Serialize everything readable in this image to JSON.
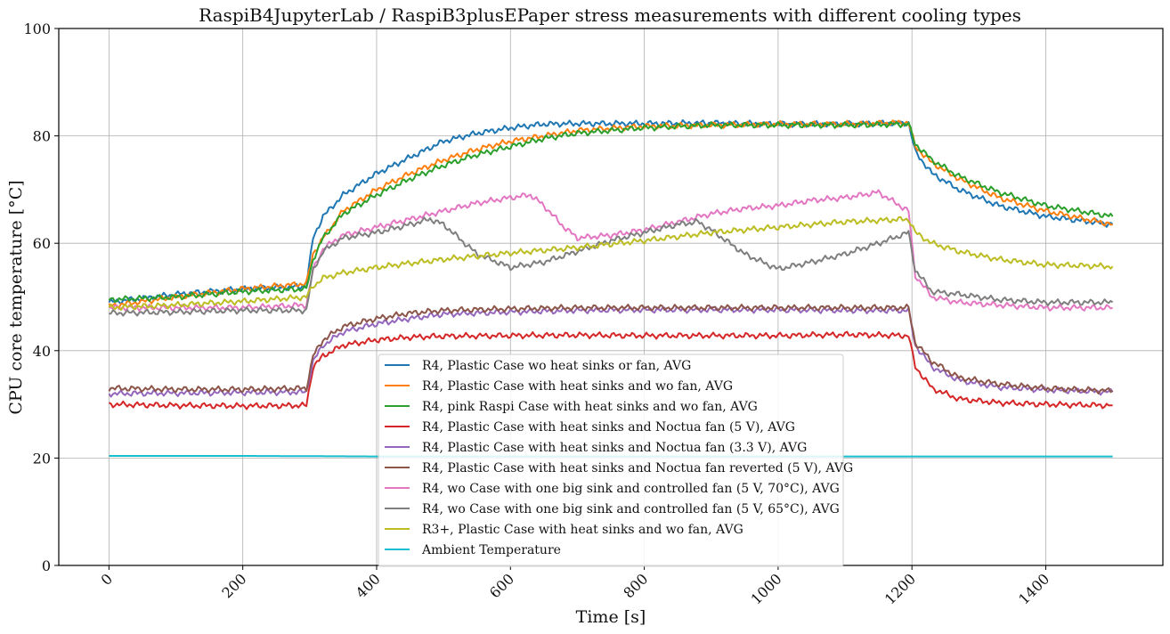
{
  "chart_data": {
    "type": "line",
    "title": "RaspiB4JupyterLab / RaspiB3plusEPaper stress measurements with different cooling types",
    "xlabel": "Time [s]",
    "ylabel": "CPU core temperature [°C]",
    "xlim": [
      -75,
      1575
    ],
    "ylim": [
      0,
      100
    ],
    "xticks": [
      0,
      200,
      400,
      600,
      800,
      1000,
      1200,
      1400
    ],
    "yticks": [
      0,
      20,
      40,
      60,
      80,
      100
    ],
    "grid": true,
    "legend_position": "lower-center",
    "series": [
      {
        "name": "R4, Plastic Case wo heat sinks or fan, AVG",
        "color": "#1f77b4",
        "points": [
          [
            0,
            49
          ],
          [
            100,
            50.5
          ],
          [
            200,
            51.5
          ],
          [
            295,
            52
          ],
          [
            305,
            61
          ],
          [
            320,
            65
          ],
          [
            350,
            69
          ],
          [
            400,
            73
          ],
          [
            450,
            76
          ],
          [
            500,
            79
          ],
          [
            550,
            80.5
          ],
          [
            600,
            81.5
          ],
          [
            650,
            82.2
          ],
          [
            700,
            82.3
          ],
          [
            800,
            82.3
          ],
          [
            900,
            82.4
          ],
          [
            1000,
            82.2
          ],
          [
            1100,
            82.2
          ],
          [
            1195,
            82.4
          ],
          [
            1205,
            77
          ],
          [
            1230,
            73
          ],
          [
            1270,
            70
          ],
          [
            1330,
            67
          ],
          [
            1400,
            65
          ],
          [
            1500,
            63.5
          ]
        ]
      },
      {
        "name": "R4, Plastic Case with heat sinks and wo fan, AVG",
        "color": "#ff7f0e",
        "points": [
          [
            0,
            48.3
          ],
          [
            100,
            50
          ],
          [
            200,
            51.5
          ],
          [
            295,
            52.5
          ],
          [
            305,
            58
          ],
          [
            320,
            61
          ],
          [
            350,
            66
          ],
          [
            400,
            70
          ],
          [
            450,
            73
          ],
          [
            500,
            75.5
          ],
          [
            550,
            77.5
          ],
          [
            600,
            79
          ],
          [
            650,
            80
          ],
          [
            700,
            81
          ],
          [
            800,
            81.8
          ],
          [
            900,
            82
          ],
          [
            1000,
            82.2
          ],
          [
            1100,
            82.2
          ],
          [
            1195,
            82.5
          ],
          [
            1205,
            78
          ],
          [
            1230,
            75
          ],
          [
            1270,
            72
          ],
          [
            1330,
            68.5
          ],
          [
            1400,
            66
          ],
          [
            1500,
            63.5
          ]
        ]
      },
      {
        "name": "R4, pink Raspi Case with heat sinks and wo fan, AVG",
        "color": "#2ca02c",
        "points": [
          [
            0,
            49.5
          ],
          [
            100,
            50
          ],
          [
            200,
            51
          ],
          [
            295,
            51.5
          ],
          [
            305,
            57
          ],
          [
            320,
            61
          ],
          [
            350,
            65.5
          ],
          [
            400,
            69
          ],
          [
            450,
            72
          ],
          [
            500,
            74.5
          ],
          [
            550,
            76.5
          ],
          [
            600,
            78
          ],
          [
            650,
            79.5
          ],
          [
            700,
            80.5
          ],
          [
            800,
            81.5
          ],
          [
            900,
            82
          ],
          [
            1000,
            82
          ],
          [
            1100,
            82
          ],
          [
            1195,
            82.2
          ],
          [
            1205,
            78.5
          ],
          [
            1230,
            75.5
          ],
          [
            1270,
            72.5
          ],
          [
            1330,
            69.5
          ],
          [
            1400,
            67
          ],
          [
            1500,
            65
          ]
        ]
      },
      {
        "name": "R4, Plastic Case with heat sinks and Noctua fan (5 V), AVG",
        "color": "#d62728",
        "points": [
          [
            0,
            30
          ],
          [
            100,
            29.8
          ],
          [
            200,
            29.7
          ],
          [
            295,
            29.8
          ],
          [
            305,
            37
          ],
          [
            320,
            39
          ],
          [
            350,
            41
          ],
          [
            400,
            42
          ],
          [
            450,
            42.5
          ],
          [
            500,
            42.7
          ],
          [
            600,
            42.8
          ],
          [
            700,
            42.9
          ],
          [
            800,
            42.8
          ],
          [
            900,
            42.8
          ],
          [
            1000,
            42.8
          ],
          [
            1100,
            43
          ],
          [
            1195,
            42.8
          ],
          [
            1205,
            37
          ],
          [
            1230,
            33
          ],
          [
            1270,
            31
          ],
          [
            1330,
            30.3
          ],
          [
            1400,
            30
          ],
          [
            1500,
            29.8
          ]
        ]
      },
      {
        "name": "R4, Plastic Case with heat sinks and Noctua fan (3.3 V), AVG",
        "color": "#9467bd",
        "points": [
          [
            0,
            32
          ],
          [
            100,
            32.1
          ],
          [
            200,
            32.2
          ],
          [
            295,
            32.3
          ],
          [
            305,
            38
          ],
          [
            320,
            41
          ],
          [
            350,
            43.5
          ],
          [
            400,
            45
          ],
          [
            450,
            46
          ],
          [
            500,
            46.8
          ],
          [
            600,
            47.2
          ],
          [
            700,
            47.5
          ],
          [
            800,
            47.6
          ],
          [
            900,
            47.6
          ],
          [
            1000,
            47.6
          ],
          [
            1100,
            47.5
          ],
          [
            1195,
            47.5
          ],
          [
            1205,
            41
          ],
          [
            1230,
            37
          ],
          [
            1270,
            34.5
          ],
          [
            1330,
            33.2
          ],
          [
            1400,
            32.7
          ],
          [
            1500,
            32.3
          ]
        ]
      },
      {
        "name": "R4, Plastic Case with heat sinks and Noctua fan reverted (5 V), AVG",
        "color": "#8c564b",
        "points": [
          [
            0,
            33
          ],
          [
            100,
            32.8
          ],
          [
            200,
            32.8
          ],
          [
            295,
            33
          ],
          [
            305,
            39
          ],
          [
            320,
            42
          ],
          [
            350,
            44.5
          ],
          [
            400,
            46
          ],
          [
            450,
            47
          ],
          [
            500,
            47.5
          ],
          [
            600,
            47.8
          ],
          [
            700,
            48
          ],
          [
            800,
            48
          ],
          [
            900,
            48
          ],
          [
            1000,
            48
          ],
          [
            1100,
            48
          ],
          [
            1195,
            48
          ],
          [
            1205,
            41.5
          ],
          [
            1230,
            38
          ],
          [
            1270,
            35
          ],
          [
            1330,
            33.8
          ],
          [
            1400,
            33
          ],
          [
            1500,
            32.5
          ]
        ]
      },
      {
        "name": "R4, wo Case with one big sink and controlled fan (5 V, 70°C), AVG",
        "color": "#e377c2",
        "points": [
          [
            0,
            48
          ],
          [
            100,
            48
          ],
          [
            200,
            48
          ],
          [
            295,
            48.5
          ],
          [
            305,
            55
          ],
          [
            320,
            59
          ],
          [
            350,
            61.5
          ],
          [
            400,
            63
          ],
          [
            450,
            64.5
          ],
          [
            500,
            66
          ],
          [
            550,
            67.5
          ],
          [
            600,
            68.5
          ],
          [
            630,
            69
          ],
          [
            650,
            67
          ],
          [
            680,
            63
          ],
          [
            700,
            61
          ],
          [
            750,
            61.5
          ],
          [
            800,
            62.5
          ],
          [
            850,
            64
          ],
          [
            900,
            65.5
          ],
          [
            950,
            66.5
          ],
          [
            1000,
            67
          ],
          [
            1050,
            68
          ],
          [
            1100,
            68.5
          ],
          [
            1150,
            69.5
          ],
          [
            1195,
            66
          ],
          [
            1205,
            54
          ],
          [
            1230,
            50
          ],
          [
            1270,
            49
          ],
          [
            1330,
            48.5
          ],
          [
            1400,
            48
          ],
          [
            1500,
            48
          ]
        ]
      },
      {
        "name": "R4, wo Case with one big sink and controlled fan (5 V, 65°C), AVG",
        "color": "#7f7f7f",
        "points": [
          [
            0,
            47
          ],
          [
            100,
            47.2
          ],
          [
            200,
            47.5
          ],
          [
            295,
            47.5
          ],
          [
            305,
            55
          ],
          [
            320,
            58.5
          ],
          [
            350,
            61
          ],
          [
            400,
            62
          ],
          [
            450,
            63.5
          ],
          [
            480,
            64.5
          ],
          [
            500,
            63.5
          ],
          [
            550,
            58
          ],
          [
            600,
            55.5
          ],
          [
            650,
            56.5
          ],
          [
            700,
            58.5
          ],
          [
            750,
            60.5
          ],
          [
            800,
            62
          ],
          [
            850,
            63.5
          ],
          [
            880,
            64
          ],
          [
            900,
            62.5
          ],
          [
            950,
            58
          ],
          [
            1000,
            55.2
          ],
          [
            1050,
            56.5
          ],
          [
            1100,
            58
          ],
          [
            1150,
            60
          ],
          [
            1195,
            62
          ],
          [
            1205,
            55
          ],
          [
            1230,
            51
          ],
          [
            1270,
            50.5
          ],
          [
            1330,
            49.5
          ],
          [
            1400,
            49
          ],
          [
            1500,
            49
          ]
        ]
      },
      {
        "name": "R3+, Plastic Case with heat sinks and wo fan, AVG",
        "color": "#bcbd22",
        "points": [
          [
            0,
            48
          ],
          [
            100,
            48.5
          ],
          [
            200,
            49.2
          ],
          [
            295,
            50
          ],
          [
            305,
            52
          ],
          [
            320,
            53.5
          ],
          [
            350,
            54.5
          ],
          [
            400,
            55.5
          ],
          [
            450,
            56.3
          ],
          [
            500,
            57
          ],
          [
            600,
            58.2
          ],
          [
            700,
            59.2
          ],
          [
            800,
            60.5
          ],
          [
            900,
            62
          ],
          [
            1000,
            63
          ],
          [
            1100,
            64
          ],
          [
            1195,
            64.5
          ],
          [
            1205,
            62
          ],
          [
            1230,
            60
          ],
          [
            1270,
            58.5
          ],
          [
            1330,
            57
          ],
          [
            1400,
            56
          ],
          [
            1500,
            55.7
          ]
        ]
      },
      {
        "name": "Ambient Temperature",
        "color": "#17becf",
        "points": [
          [
            0,
            20.4
          ],
          [
            200,
            20.4
          ],
          [
            400,
            20.3
          ],
          [
            600,
            20.3
          ],
          [
            800,
            20.3
          ],
          [
            1000,
            20.3
          ],
          [
            1200,
            20.3
          ],
          [
            1400,
            20.3
          ],
          [
            1500,
            20.3
          ]
        ]
      }
    ]
  }
}
